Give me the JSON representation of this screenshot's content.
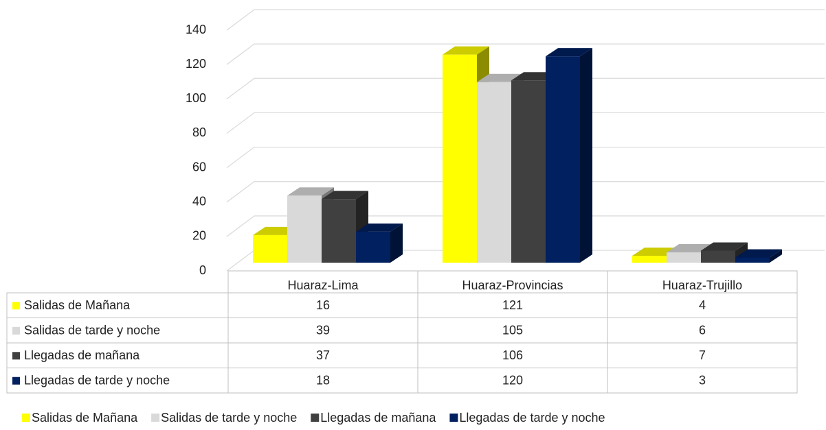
{
  "chart_data": {
    "type": "bar3d",
    "categories": [
      "Huaraz-Lima",
      "Huaraz-Provincias",
      "Huaraz-Trujillo"
    ],
    "series": [
      {
        "name": "Salidas de Mañana",
        "color": "#ffff00",
        "values": [
          16,
          121,
          4
        ]
      },
      {
        "name": "Salidas de tarde y noche",
        "color": "#d9d9d9",
        "values": [
          39,
          105,
          6
        ]
      },
      {
        "name": "Llegadas de mañana",
        "color": "#404040",
        "values": [
          37,
          106,
          7
        ]
      },
      {
        "name": "Llegadas de tarde y noche",
        "color": "#002060",
        "values": [
          18,
          120,
          3
        ]
      }
    ],
    "ylim": [
      0,
      140
    ],
    "yticks": [
      0,
      20,
      40,
      60,
      80,
      100,
      120,
      140
    ],
    "grid": true,
    "data_table": true,
    "legend": "bottom"
  }
}
